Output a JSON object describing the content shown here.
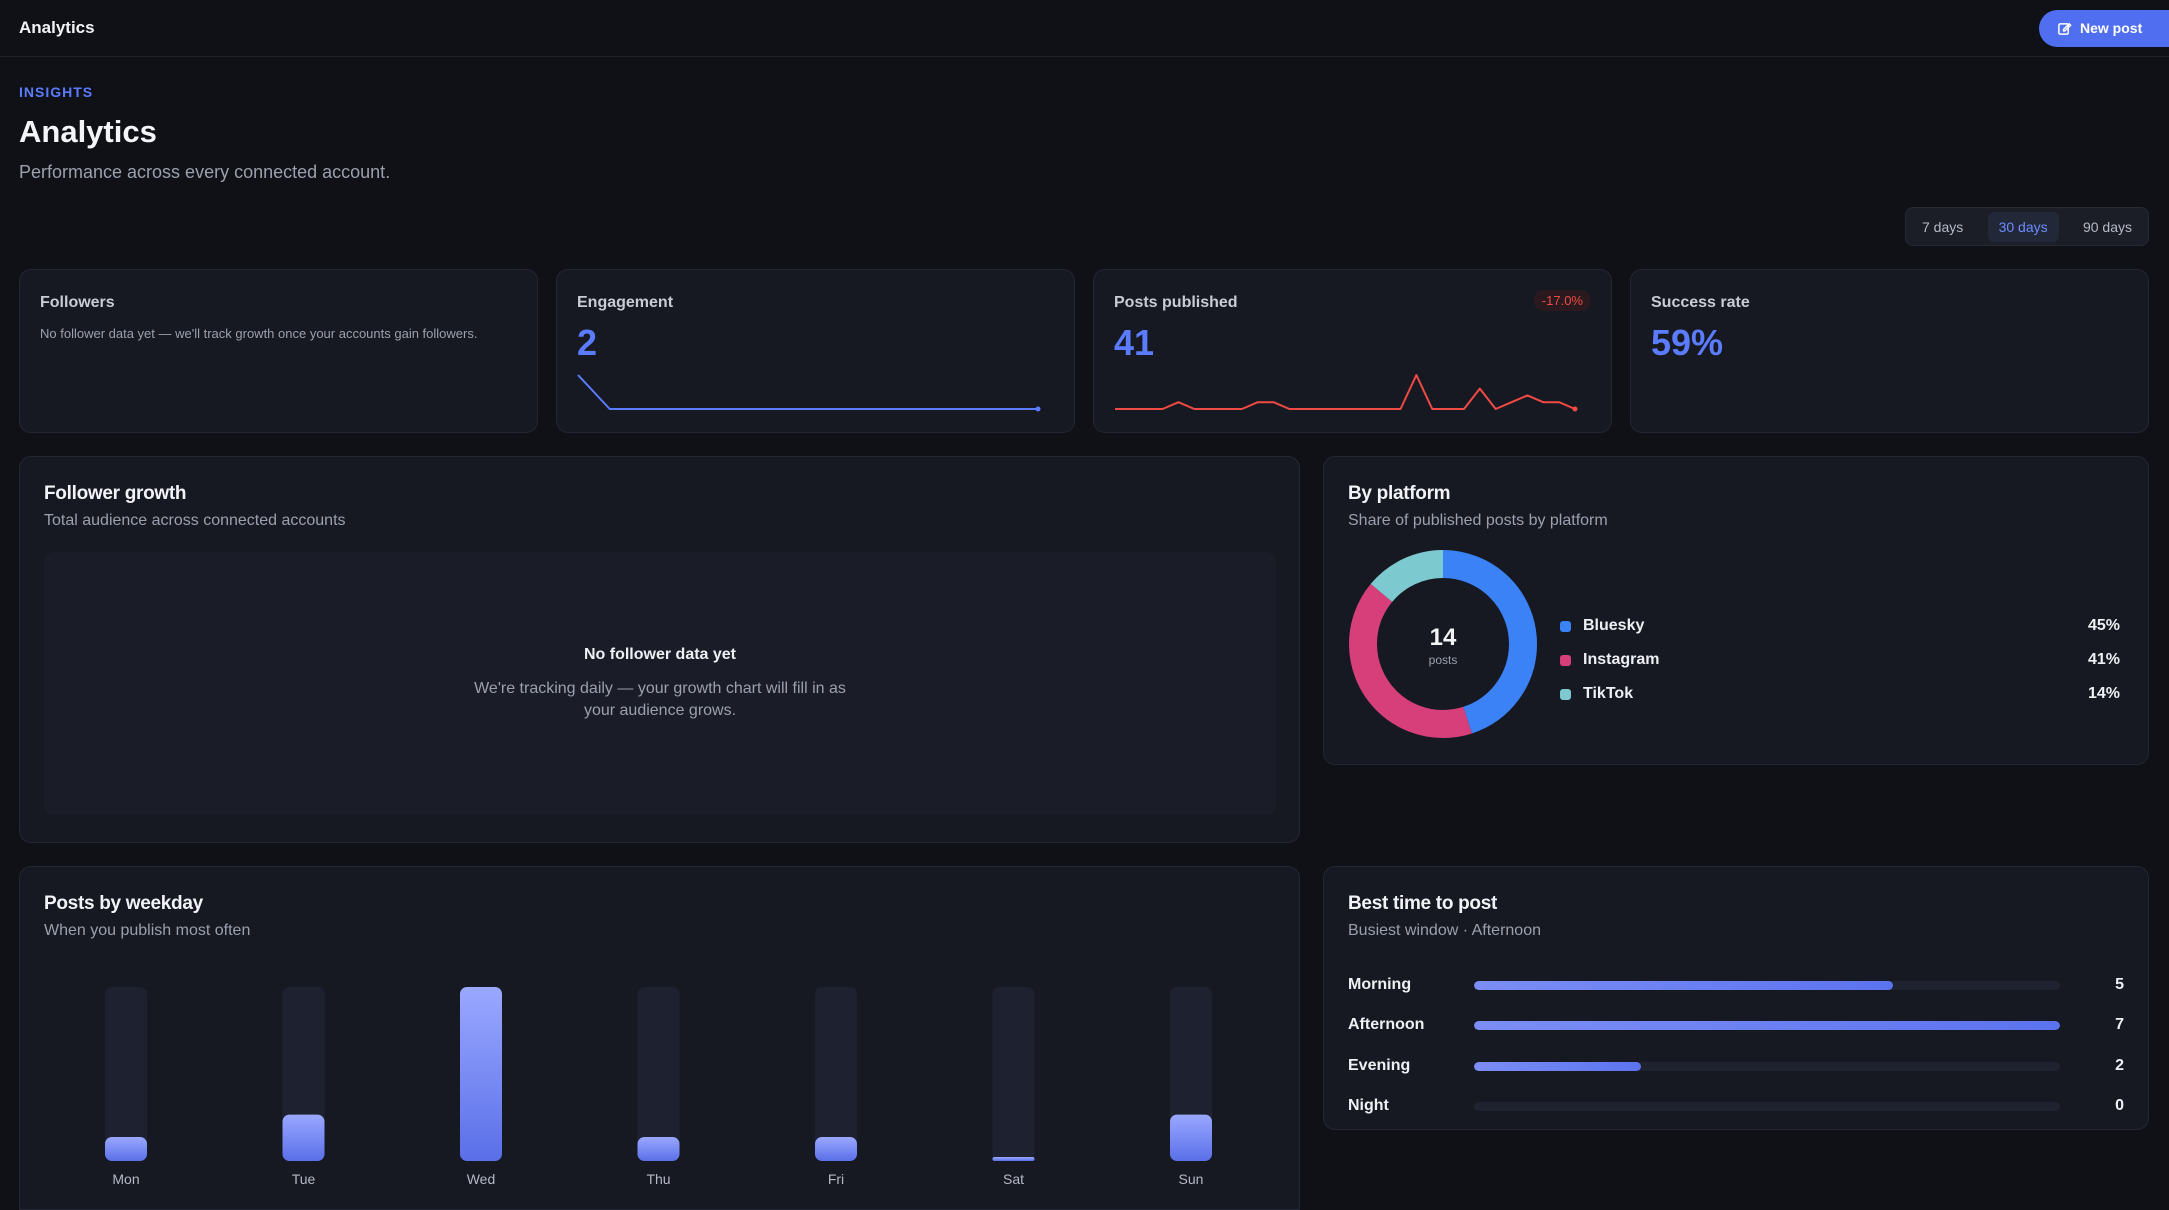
{
  "topbar": {
    "title": "Analytics",
    "new_post_label": "New post"
  },
  "header": {
    "eyebrow": "INSIGHTS",
    "title": "Analytics",
    "subtitle": "Performance across every connected account."
  },
  "range": {
    "options": [
      "7 days",
      "30 days",
      "90 days"
    ],
    "active": "30 days"
  },
  "stats": {
    "followers": {
      "label": "Followers",
      "note": "No follower data yet — we'll track growth once your accounts gain followers."
    },
    "engagement": {
      "label": "Engagement",
      "value": "2"
    },
    "posts": {
      "label": "Posts published",
      "value": "41",
      "delta": "-17.0%"
    },
    "success": {
      "label": "Success rate",
      "value": "59%"
    }
  },
  "follower_growth": {
    "title": "Follower growth",
    "subtitle": "Total audience across connected accounts",
    "empty_title": "No follower data yet",
    "empty_text": "We're tracking daily — your growth chart will fill in as your audience grows."
  },
  "by_platform": {
    "title": "By platform",
    "subtitle": "Share of published posts by platform",
    "center_value": "14",
    "center_label": "posts",
    "items": [
      {
        "name": "Bluesky",
        "pct": "45%",
        "share": 45,
        "color": "#3b82f6"
      },
      {
        "name": "Instagram",
        "pct": "41%",
        "share": 41,
        "color": "#d63f7a"
      },
      {
        "name": "TikTok",
        "pct": "14%",
        "share": 14,
        "color": "#7cc9cf"
      }
    ]
  },
  "weekday": {
    "title": "Posts by weekday",
    "subtitle": "When you publish most often"
  },
  "best_time": {
    "title": "Best time to post",
    "subtitle": "Busiest window · Afternoon",
    "rows": [
      {
        "label": "Morning",
        "count": "5",
        "value": 5
      },
      {
        "label": "Afternoon",
        "count": "7",
        "value": 7
      },
      {
        "label": "Evening",
        "count": "2",
        "value": 2
      },
      {
        "label": "Night",
        "count": "0",
        "value": 0
      }
    ]
  },
  "chart_data": [
    {
      "type": "line",
      "x": [
        1,
        2,
        3,
        4,
        5,
        6,
        7,
        8,
        9,
        10,
        11,
        12,
        13,
        14,
        15,
        16,
        17,
        18,
        19,
        20,
        21,
        22,
        23,
        24,
        25,
        26,
        27,
        28,
        29,
        30
      ],
      "series": [
        {
          "values": [
            2,
            1,
            0,
            0,
            0,
            0,
            0,
            0,
            0,
            0,
            0,
            0,
            0,
            0,
            0,
            0,
            0,
            0,
            0,
            0,
            0,
            0,
            0,
            0,
            0,
            0,
            0,
            0,
            0,
            0
          ],
          "color": "#5b7cff"
        }
      ]
    },
    {
      "type": "line",
      "x": [
        1,
        2,
        3,
        4,
        5,
        6,
        7,
        8,
        9,
        10,
        11,
        12,
        13,
        14,
        15,
        16,
        17,
        18,
        19,
        20,
        21,
        22,
        23,
        24,
        25,
        26,
        27,
        28,
        29,
        30
      ],
      "series": [
        {
          "values": [
            0,
            0,
            0,
            0,
            1,
            0,
            0,
            0,
            0,
            1,
            1,
            0,
            0,
            0,
            0,
            0,
            0,
            0,
            0,
            5,
            0,
            0,
            0,
            3,
            0,
            1,
            2,
            1,
            1,
            0
          ],
          "color": "#ef4a43"
        }
      ]
    },
    {
      "type": "pie",
      "categories": [
        "Bluesky",
        "Instagram",
        "TikTok"
      ],
      "values": [
        45,
        41,
        14
      ],
      "colors": [
        "#3b82f6",
        "#d63f7a",
        "#7cc9cf"
      ]
    },
    {
      "type": "bar",
      "categories": [
        "Mon",
        "Tue",
        "Wed",
        "Thu",
        "Fri",
        "Sat",
        "Sun"
      ],
      "values": [
        2,
        4,
        15,
        2,
        2,
        0,
        4
      ],
      "ylim": [
        0,
        15
      ]
    }
  ]
}
